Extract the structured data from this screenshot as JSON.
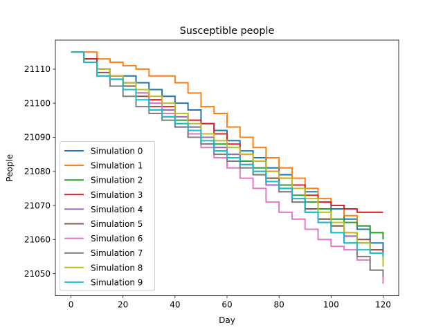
{
  "chart_data": {
    "type": "line",
    "title": "Susceptible people",
    "xlabel": "Day",
    "ylabel": "People",
    "xlim": [
      -6,
      126
    ],
    "ylim": [
      21043.5,
      21118.5
    ],
    "xticks": [
      0,
      20,
      40,
      60,
      80,
      100,
      120
    ],
    "yticks": [
      21050,
      21060,
      21070,
      21080,
      21090,
      21100,
      21110
    ],
    "grid": false,
    "legend_position": "lower-left",
    "series": [
      {
        "name": "Simulation 0",
        "color": "#1f77b4",
        "x": [
          0,
          5,
          10,
          15,
          20,
          25,
          30,
          35,
          40,
          45,
          50,
          55,
          60,
          65,
          70,
          75,
          80,
          85,
          90,
          95,
          100,
          105,
          110,
          115,
          120
        ],
        "y": [
          21115,
          21113,
          21110,
          21108,
          21108,
          21106,
          21104,
          21102,
          21100,
          21098,
          21094,
          21092,
          21089,
          21086,
          21084,
          21081,
          21079,
          21076,
          21074,
          21071,
          21069,
          21066,
          21063,
          21059,
          21055
        ]
      },
      {
        "name": "Simulation 1",
        "color": "#ff7f0e",
        "x": [
          0,
          5,
          10,
          15,
          20,
          25,
          30,
          35,
          40,
          45,
          50,
          55,
          60,
          65,
          70,
          75,
          80,
          85,
          90,
          95,
          100,
          105,
          110,
          115,
          120
        ],
        "y": [
          21115,
          21115,
          21113,
          21112,
          21111,
          21110,
          21108,
          21108,
          21106,
          21103,
          21099,
          21097,
          21093,
          21090,
          21087,
          21084,
          21081,
          21078,
          21075,
          21072,
          21070,
          21067,
          21064,
          21062,
          21060
        ]
      },
      {
        "name": "Simulation 2",
        "color": "#2ca02c",
        "x": [
          0,
          5,
          10,
          15,
          20,
          25,
          30,
          35,
          40,
          45,
          50,
          55,
          60,
          65,
          70,
          75,
          80,
          85,
          90,
          95,
          100,
          105,
          110,
          115,
          120
        ],
        "y": [
          21115,
          21113,
          21110,
          21108,
          21106,
          21104,
          21101,
          21098,
          21095,
          21093,
          21090,
          21088,
          21085,
          21083,
          21081,
          21078,
          21076,
          21073,
          21071,
          21069,
          21066,
          21065,
          21064,
          21062,
          21060
        ]
      },
      {
        "name": "Simulation 3",
        "color": "#d62728",
        "x": [
          0,
          5,
          10,
          15,
          20,
          25,
          30,
          35,
          40,
          45,
          50,
          55,
          60,
          65,
          70,
          75,
          80,
          85,
          90,
          95,
          100,
          105,
          110,
          115,
          120
        ],
        "y": [
          21115,
          21113,
          21110,
          21108,
          21106,
          21103,
          21101,
          21099,
          21097,
          21095,
          21094,
          21091,
          21088,
          21085,
          21083,
          21080,
          21078,
          21076,
          21073,
          21071,
          21070,
          21069,
          21068,
          21068,
          21068
        ]
      },
      {
        "name": "Simulation 4",
        "color": "#9467bd",
        "x": [
          0,
          5,
          10,
          15,
          20,
          25,
          30,
          35,
          40,
          45,
          50,
          55,
          60,
          65,
          70,
          75,
          80,
          85,
          90,
          95,
          100,
          105,
          110,
          115,
          120
        ],
        "y": [
          21115,
          21112,
          21110,
          21107,
          21105,
          21103,
          21100,
          21098,
          21096,
          21093,
          21090,
          21087,
          21085,
          21082,
          21079,
          21076,
          21074,
          21071,
          21069,
          21066,
          21064,
          21061,
          21059,
          21057,
          21054
        ]
      },
      {
        "name": "Simulation 5",
        "color": "#8c564b",
        "x": [
          0,
          5,
          10,
          15,
          20,
          25,
          30,
          35,
          40,
          45,
          50,
          55,
          60,
          65,
          70,
          75,
          80,
          85,
          90,
          95,
          100,
          105,
          110,
          115,
          120
        ],
        "y": [
          21115,
          21112,
          21109,
          21107,
          21105,
          21102,
          21099,
          21096,
          21093,
          21090,
          21088,
          21086,
          21084,
          21082,
          21080,
          21078,
          21075,
          21072,
          21069,
          21066,
          21064,
          21062,
          21060,
          21057,
          21055
        ]
      },
      {
        "name": "Simulation 6",
        "color": "#e377c2",
        "x": [
          0,
          5,
          10,
          15,
          20,
          25,
          30,
          35,
          40,
          45,
          50,
          55,
          60,
          65,
          70,
          75,
          80,
          85,
          90,
          95,
          100,
          105,
          110,
          115,
          120
        ],
        "y": [
          21115,
          21112,
          21110,
          21108,
          21106,
          21103,
          21100,
          21097,
          21094,
          21091,
          21087,
          21084,
          21081,
          21078,
          21075,
          21071,
          21068,
          21066,
          21063,
          21060,
          21058,
          21057,
          21054,
          21051,
          21047
        ]
      },
      {
        "name": "Simulation 7",
        "color": "#7f7f7f",
        "x": [
          0,
          5,
          10,
          15,
          20,
          25,
          30,
          35,
          40,
          45,
          50,
          55,
          60,
          65,
          70,
          75,
          80,
          85,
          90,
          95,
          100,
          105,
          110,
          115,
          120
        ],
        "y": [
          21115,
          21112,
          21108,
          21105,
          21102,
          21099,
          21097,
          21095,
          21093,
          21090,
          21088,
          21085,
          21083,
          21081,
          21079,
          21077,
          21074,
          21071,
          21068,
          21065,
          21062,
          21059,
          21055,
          21051,
          21049
        ]
      },
      {
        "name": "Simulation 8",
        "color": "#bcbd22",
        "x": [
          0,
          5,
          10,
          15,
          20,
          25,
          30,
          35,
          40,
          45,
          50,
          55,
          60,
          65,
          70,
          75,
          80,
          85,
          90,
          95,
          100,
          105,
          110,
          115,
          120
        ],
        "y": [
          21115,
          21112,
          21110,
          21108,
          21106,
          21104,
          21102,
          21100,
          21097,
          21094,
          21091,
          21089,
          21087,
          21085,
          21083,
          21080,
          21078,
          21075,
          21072,
          21068,
          21065,
          21062,
          21059,
          21056,
          21052
        ]
      },
      {
        "name": "Simulation 9",
        "color": "#17becf",
        "x": [
          0,
          5,
          10,
          15,
          20,
          25,
          30,
          35,
          40,
          45,
          50,
          55,
          60,
          65,
          70,
          75,
          80,
          85,
          90,
          95,
          100,
          105,
          110,
          115,
          120
        ],
        "y": [
          21115,
          21112,
          21108,
          21107,
          21104,
          21101,
          21098,
          21096,
          21094,
          21092,
          21089,
          21086,
          21084,
          21082,
          21080,
          21077,
          21075,
          21072,
          21068,
          21065,
          21062,
          21059,
          21057,
          21056,
          21055
        ]
      }
    ]
  }
}
